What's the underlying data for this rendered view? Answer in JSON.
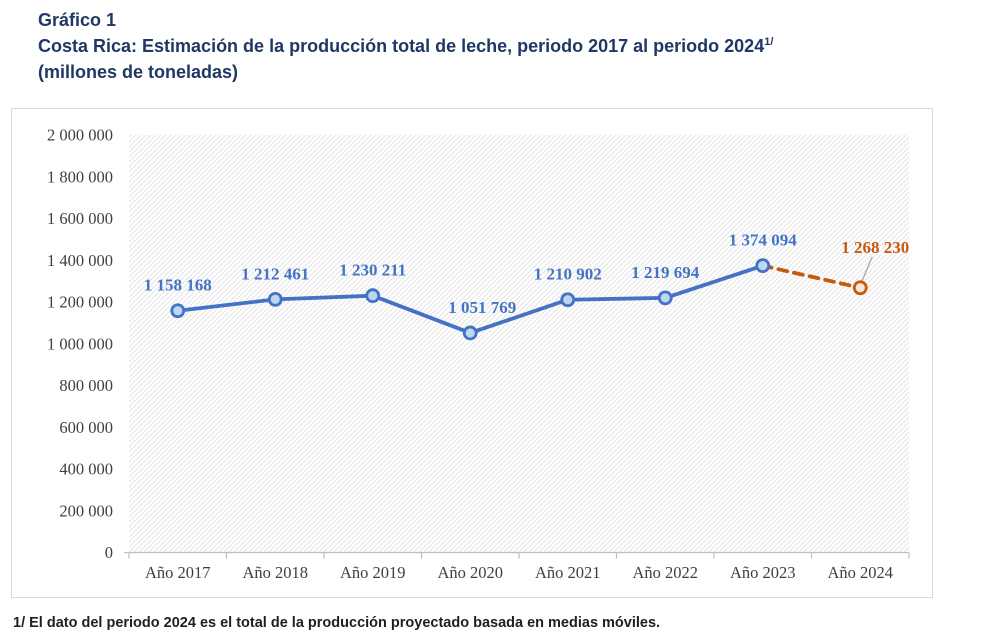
{
  "header": {
    "figure_label": "Gráfico 1",
    "title": "Costa Rica: Estimación de la producción total de leche, periodo 2017 al periodo 2024",
    "superscript": "1/",
    "unit": "(millones de toneladas)"
  },
  "footnote": "1/ El dato del periodo 2024 es el total de la producción proyectado basada en medias móviles.",
  "colors": {
    "title_navy": "#1F3864",
    "series_blue": "#4472C4",
    "marker_fill": "#BDD7EE",
    "projection_orange": "#C55A11",
    "projection_marker_fill": "#FBE5D6",
    "axis_line": "#BFBFBF",
    "axis_text": "#3F3F3F",
    "hatch_line": "#E3E3E3",
    "frame_border": "#D9D9D9",
    "leader_line": "#A6A6A6"
  },
  "chart_data": {
    "type": "line",
    "title": "Costa Rica: Estimación de la producción total de leche, periodo 2017 al periodo 2024",
    "unit_label": "(millones de toneladas)",
    "categories": [
      "Año 2017",
      "Año 2018",
      "Año 2019",
      "Año 2020",
      "Año 2021",
      "Año 2022",
      "Año 2023",
      "Año 2024"
    ],
    "values": [
      1158168,
      1212461,
      1230211,
      1051769,
      1210902,
      1219694,
      1374094,
      1268230
    ],
    "data_labels": [
      "1 158 168",
      "1 212 461",
      "1 230 211",
      "1 051 769",
      "1 210 902",
      "1 219 694",
      "1 374 094",
      "1 268 230"
    ],
    "projected_indices": [
      7
    ],
    "projection_note": "Último punto (Año 2024) proyectado: línea discontinua naranja",
    "ylim": [
      0,
      2000000
    ],
    "ytick_interval": 200000,
    "ytick_labels": [
      "0",
      "200 000",
      "400 000",
      "600 000",
      "800 000",
      "1 000 000",
      "1 200 000",
      "1 400 000",
      "1 600 000",
      "1 800 000",
      "2 000 000"
    ],
    "xlabel": "",
    "ylabel": "",
    "grid": false,
    "legend": "none",
    "plot_background": "diagonal-hatch"
  }
}
